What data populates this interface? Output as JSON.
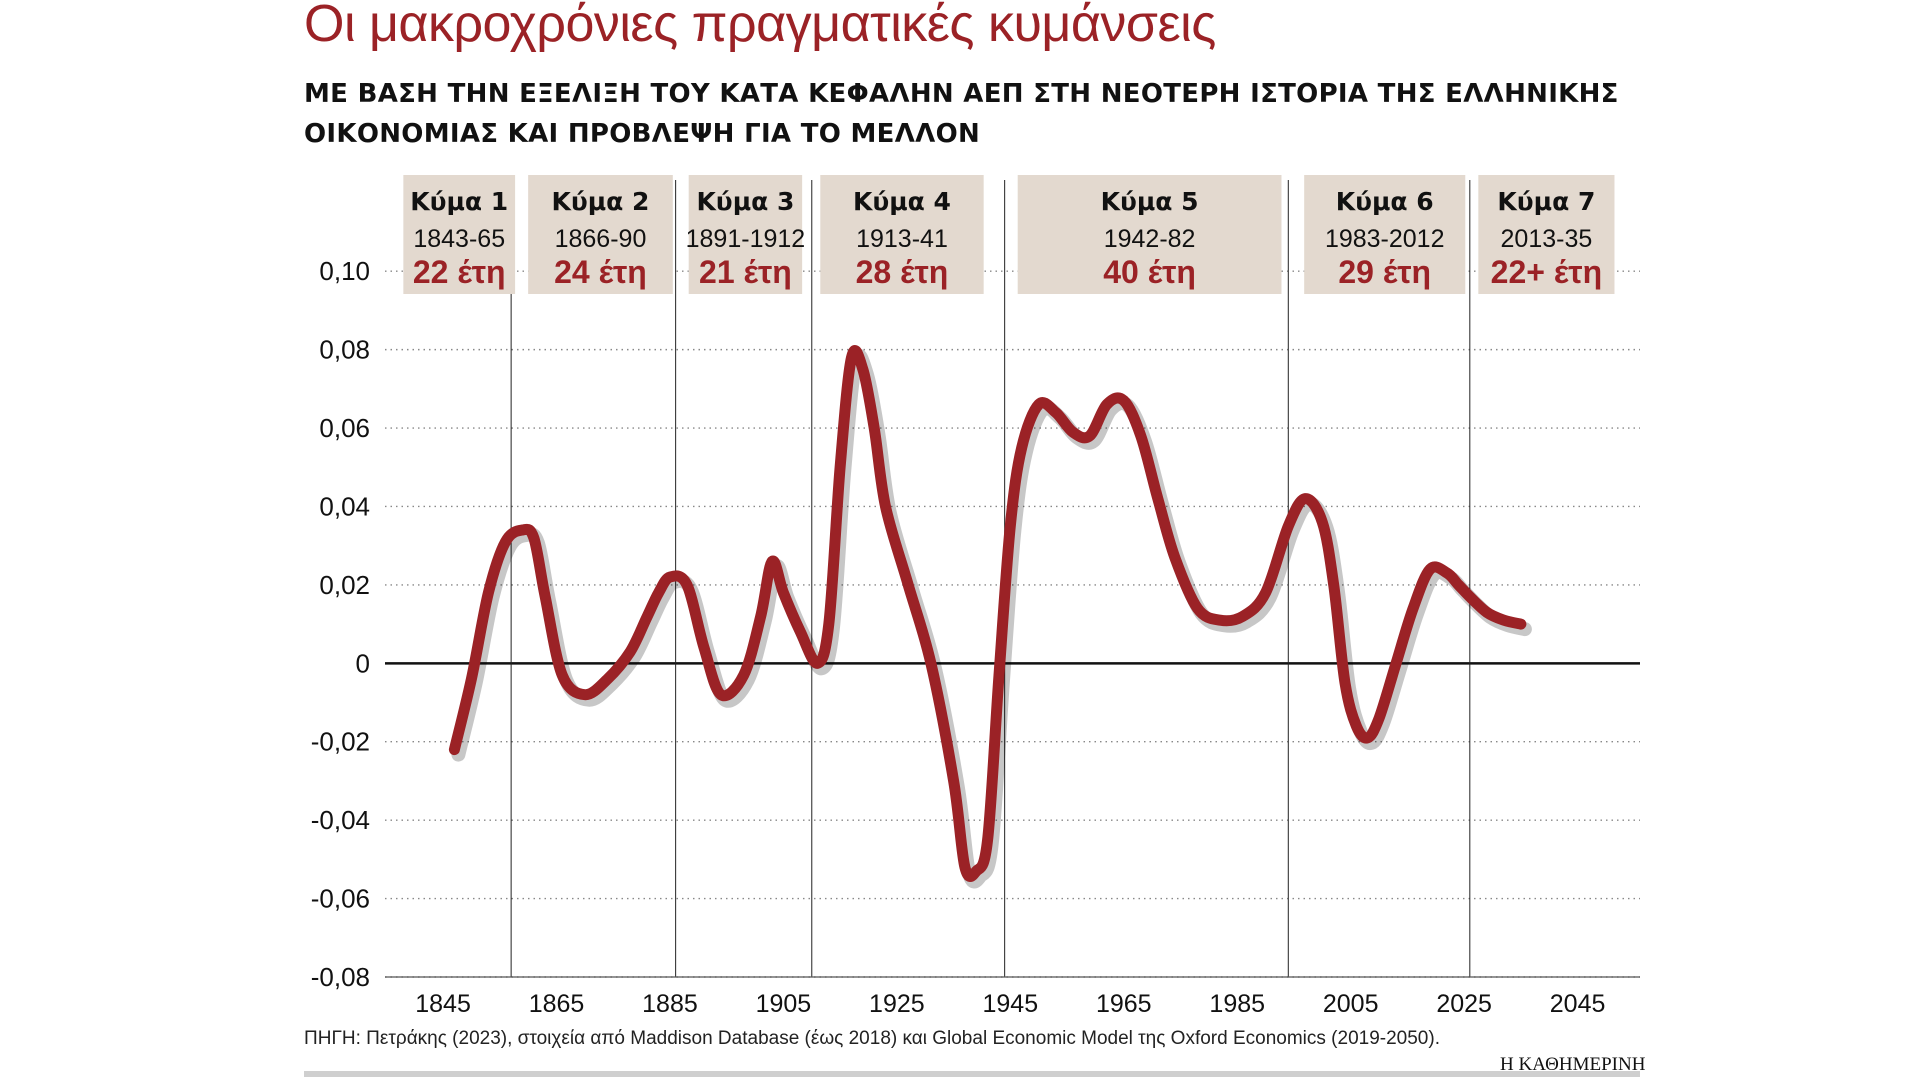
{
  "title": "Οι μακροχρόνιες πραγματικές κυμάνσεις",
  "subtitle": "ΜΕ ΒΑΣΗ ΤΗΝ ΕΞΕΛΙΞΗ ΤΟΥ ΚΑΤΑ ΚΕΦΑΛΗΝ ΑΕΠ ΣΤΗ ΝΕΟΤΕΡΗ ΙΣΤΟΡΙΑ ΤΗΣ ΕΛΛΗΝΙΚΗΣ ΟΙΚΟΝΟΜΙΑΣ ΚΑΙ ΠΡΟΒΛΕΨΗ ΓΙΑ ΤΟ ΜΕΛΛΟΝ",
  "source": "ΠΗΓΗ: Πετράκης (2023), στοιχεία από Maddison Database (έως 2018) και Global Economic Model της Oxford Economics (2019-2050).",
  "brand": "Η ΚΑΘΗΜΕΡΙΝΗ",
  "colors": {
    "line": "#9b2226",
    "wave_box": "#e3d9cf",
    "accent": "#9b2226",
    "grid": "#888888"
  },
  "chart_data": {
    "type": "line",
    "title": "Οι μακροχρόνιες πραγματικές κυμάνσεις",
    "xlabel": "",
    "ylabel": "",
    "xlim": [
      1836,
      2056
    ],
    "ylim": [
      -0.08,
      0.11
    ],
    "x_ticks": [
      1845,
      1865,
      1885,
      1905,
      1925,
      1945,
      1965,
      1985,
      2005,
      2025,
      2045
    ],
    "y_ticks": [
      {
        "value": 0.1,
        "label": "0,10"
      },
      {
        "value": 0.08,
        "label": "0,08"
      },
      {
        "value": 0.06,
        "label": "0,06"
      },
      {
        "value": 0.04,
        "label": "0,04"
      },
      {
        "value": 0.02,
        "label": "0,02"
      },
      {
        "value": 0,
        "label": "0"
      },
      {
        "value": -0.02,
        "label": "-0,02"
      },
      {
        "value": -0.04,
        "label": "-0,04"
      },
      {
        "value": -0.06,
        "label": "-0,06"
      },
      {
        "value": -0.08,
        "label": "-0,08"
      }
    ],
    "grid": "horizontal-dotted",
    "wave_boundaries": [
      1857,
      1886,
      1910,
      1944,
      1994,
      2026
    ],
    "waves": [
      {
        "name": "Κύμα 1",
        "period": "1843-65",
        "duration": "22 έτη",
        "x_from": 1838,
        "x_to": 1857.7
      },
      {
        "name": "Κύμα 2",
        "period": "1866-90",
        "duration": "24 έτη",
        "x_from": 1860,
        "x_to": 1885.5
      },
      {
        "name": "Κύμα 3",
        "period": "1891-1912",
        "duration": "21 έτη",
        "x_from": 1888.3,
        "x_to": 1908.3
      },
      {
        "name": "Κύμα 4",
        "period": "1913-41",
        "duration": "28 έτη",
        "x_from": 1911.5,
        "x_to": 1940.3
      },
      {
        "name": "Κύμα 5",
        "period": "1942-82",
        "duration": "40 έτη",
        "x_from": 1946.3,
        "x_to": 1992.8
      },
      {
        "name": "Κύμα 6",
        "period": "1983-2012",
        "duration": "29 έτη",
        "x_from": 1996.8,
        "x_to": 2025.2
      },
      {
        "name": "Κύμα 7",
        "period": "2013-35",
        "duration": "22+ έτη",
        "x_from": 2027.5,
        "x_to": 2051.5
      }
    ],
    "series": [
      {
        "x": [
          1847,
          1850,
          1853,
          1856,
          1859,
          1861,
          1863,
          1866,
          1870,
          1874,
          1878,
          1881,
          1883,
          1885,
          1888,
          1891,
          1894,
          1898,
          1901,
          1903,
          1905,
          1908,
          1911,
          1913,
          1915,
          1917,
          1919,
          1921,
          1923,
          1927,
          1931,
          1935,
          1937,
          1939,
          1941,
          1943,
          1945,
          1947,
          1950,
          1953,
          1956,
          1959,
          1962,
          1965,
          1968,
          1971,
          1974,
          1978,
          1982,
          1986,
          1990,
          1994,
          1997,
          2000,
          2002,
          2004,
          2006,
          2008,
          2010,
          2013,
          2016,
          2019,
          2022,
          2024,
          2026,
          2029,
          2032,
          2035
        ],
        "y": [
          -0.022,
          -0.004,
          0.018,
          0.031,
          0.034,
          0.032,
          0.017,
          -0.003,
          -0.008,
          -0.004,
          0.003,
          0.012,
          0.018,
          0.022,
          0.02,
          0.004,
          -0.008,
          -0.003,
          0.012,
          0.026,
          0.018,
          0.008,
          0.0,
          0.01,
          0.05,
          0.078,
          0.075,
          0.06,
          0.04,
          0.02,
          0.0,
          -0.03,
          -0.052,
          -0.053,
          -0.045,
          -0.003,
          0.035,
          0.055,
          0.066,
          0.064,
          0.059,
          0.058,
          0.066,
          0.067,
          0.058,
          0.042,
          0.027,
          0.014,
          0.011,
          0.012,
          0.018,
          0.035,
          0.042,
          0.036,
          0.02,
          -0.005,
          -0.016,
          -0.019,
          -0.014,
          0.0,
          0.014,
          0.024,
          0.023,
          0.02,
          0.017,
          0.013,
          0.011,
          0.01
        ]
      }
    ]
  }
}
